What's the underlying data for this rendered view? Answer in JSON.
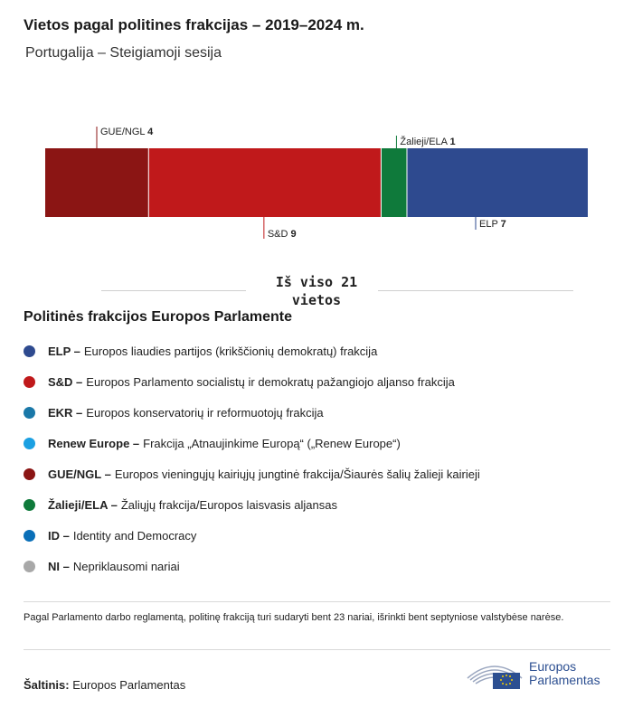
{
  "title": "Vietos pagal politines frakcijas – 2019–2024 m.",
  "subtitle": "Portugalija – Steigiamoji sesija",
  "chart_data": {
    "type": "bar",
    "orientation": "stacked-horizontal",
    "title": "Vietos pagal politines frakcijas – 2019–2024 m.",
    "subtitle": "Portugalija – Steigiamoji sesija",
    "categories": [
      "GUE/NGL",
      "S&D",
      "Žalieji/ELA",
      "ELP"
    ],
    "values": [
      4,
      9,
      1,
      7
    ],
    "colors": [
      "#8b1514",
      "#c0191b",
      "#0f7a3b",
      "#2e4a8f"
    ],
    "label_side": [
      "top",
      "bottom",
      "top",
      "bottom"
    ],
    "total": 21
  },
  "total_label": "Iš viso 21 vietos",
  "legend": {
    "title": "Politinės frakcijos Europos Parlamente",
    "items": [
      {
        "abbr": "ELP –",
        "desc": "Europos liaudies partijos (krikščionių demokratų) frakcija",
        "color": "#2e4a8f"
      },
      {
        "abbr": "S&D –",
        "desc": "Europos Parlamento socialistų ir demokratų pažangiojo aljanso frakcija",
        "color": "#c0191b"
      },
      {
        "abbr": "EKR –",
        "desc": "Europos konservatorių ir reformuotojų frakcija",
        "color": "#1a78a8"
      },
      {
        "abbr": "Renew Europe –",
        "desc": "Frakcija „Atnaujinkime Europą“ („Renew Europe“)",
        "color": "#1ba0e2"
      },
      {
        "abbr": "GUE/NGL –",
        "desc": "Europos vieningųjų kairiųjų jungtinė frakcija/Šiaurės šalių žalieji kairieji",
        "color": "#8b1514"
      },
      {
        "abbr": "Žalieji/ELA –",
        "desc": "Žaliųjų frakcija/Europos laisvasis aljansas",
        "color": "#0f7a3b"
      },
      {
        "abbr": "ID –",
        "desc": "Identity and Democracy",
        "color": "#0a6fb8"
      },
      {
        "abbr": "NI –",
        "desc": "Nepriklausomi nariai",
        "color": "#a8a8a8"
      }
    ]
  },
  "note": "Pagal Parlamento darbo reglamentą, politinę frakciją turi sudaryti bent 23 nariai, išrinkti bent septyniose valstybėse narėse.",
  "source": {
    "label": "Šaltinis:",
    "value": "Europos Parlamentas"
  },
  "logo": {
    "line1": "Europos",
    "line2": "Parlamentas"
  }
}
